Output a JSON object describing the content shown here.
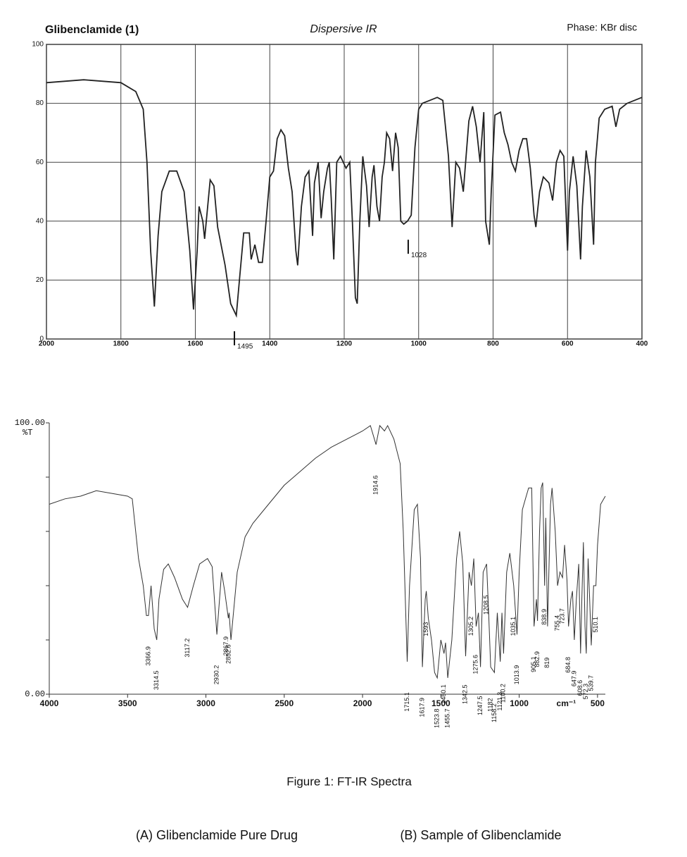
{
  "chart_data": [
    {
      "type": "line",
      "title": "Glibenclamide (1)",
      "subtitle": "Dispersive IR",
      "note": "Phase: KBr disc",
      "grid": true,
      "color": "#222222",
      "xlim": [
        2000,
        400
      ],
      "xticks": [
        2000,
        1800,
        1600,
        1400,
        1200,
        1000,
        800,
        600,
        400
      ],
      "ylim": [
        0,
        100
      ],
      "yticks": [
        0,
        20,
        40,
        60,
        80,
        100
      ],
      "annotations": [
        1495,
        1028
      ],
      "x": [
        2000,
        1900,
        1800,
        1760,
        1740,
        1730,
        1720,
        1710,
        1700,
        1690,
        1670,
        1650,
        1630,
        1615,
        1605,
        1595,
        1590,
        1580,
        1575,
        1560,
        1550,
        1540,
        1520,
        1505,
        1490,
        1480,
        1470,
        1455,
        1450,
        1440,
        1430,
        1420,
        1410,
        1400,
        1390,
        1380,
        1370,
        1360,
        1350,
        1340,
        1330,
        1325,
        1315,
        1305,
        1295,
        1285,
        1280,
        1270,
        1262,
        1255,
        1245,
        1240,
        1235,
        1228,
        1220,
        1210,
        1195,
        1185,
        1178,
        1170,
        1165,
        1158,
        1150,
        1140,
        1133,
        1125,
        1120,
        1112,
        1105,
        1098,
        1092,
        1086,
        1078,
        1070,
        1062,
        1055,
        1048,
        1040,
        1030,
        1020,
        1010,
        1000,
        990,
        970,
        950,
        935,
        920,
        910,
        900,
        890,
        880,
        865,
        855,
        845,
        835,
        825,
        820,
        810,
        805,
        795,
        780,
        770,
        760,
        750,
        740,
        730,
        720,
        710,
        700,
        690,
        685,
        675,
        665,
        650,
        640,
        630,
        620,
        610,
        600,
        595,
        585,
        575,
        565,
        560,
        550,
        540,
        530,
        525,
        515,
        500,
        480,
        470,
        460,
        440,
        420,
        400
      ],
      "values": [
        87,
        88,
        87,
        84,
        78,
        60,
        30,
        11,
        35,
        50,
        57,
        57,
        50,
        30,
        10,
        30,
        45,
        40,
        34,
        54,
        52,
        38,
        25,
        12,
        8,
        22,
        36,
        36,
        27,
        32,
        26,
        26,
        40,
        55,
        57,
        68,
        71,
        69,
        58,
        50,
        30,
        25,
        45,
        55,
        57,
        35,
        53,
        60,
        41,
        50,
        58,
        60,
        48,
        27,
        60,
        62,
        58,
        60,
        40,
        14,
        12,
        40,
        62,
        52,
        38,
        55,
        59,
        45,
        40,
        55,
        60,
        70,
        68,
        57,
        70,
        65,
        40,
        39,
        40,
        42,
        65,
        78,
        80,
        81,
        82,
        81,
        62,
        38,
        60,
        58,
        50,
        74,
        79,
        72,
        60,
        77,
        40,
        32,
        50,
        76,
        77,
        70,
        66,
        60,
        57,
        64,
        68,
        68,
        58,
        42,
        38,
        50,
        55,
        53,
        47,
        60,
        64,
        62,
        30,
        50,
        62,
        52,
        27,
        45,
        64,
        55,
        32,
        60,
        75,
        78,
        79,
        72,
        78,
        80,
        81,
        82
      ]
    },
    {
      "type": "line",
      "y_label": "%T",
      "x_label": "cm⁻¹",
      "color": "#333333",
      "xlim": [
        4000,
        450
      ],
      "xticks": [
        4000,
        3500,
        3000,
        2500,
        2000,
        1500,
        1000,
        500
      ],
      "ylim": [
        0,
        100
      ],
      "yticks": [
        {
          "value": 0,
          "label": "0.00"
        },
        {
          "value": 100,
          "label": "100.00"
        }
      ],
      "minor_yticks": [
        20,
        40,
        60,
        80
      ],
      "peak_labels": [
        3366.9,
        3314.5,
        3117.2,
        2930.2,
        2867.9,
        2852.6,
        1914.6,
        1715.1,
        1617.9,
        1593.0,
        1523.8,
        1480.1,
        1455.7,
        1342.5,
        1305.2,
        1275.6,
        1247.5,
        1208.5,
        1182.0,
        1158.2,
        1121.3,
        1100.2,
        1035.1,
        1013.9,
        905.1,
        882.9,
        838.9,
        819.0,
        755.4,
        723.7,
        684.8,
        647.9,
        608.6,
        572.3,
        539.7,
        510.1
      ],
      "x": [
        4000,
        3900,
        3800,
        3700,
        3600,
        3500,
        3470,
        3430,
        3400,
        3380,
        3367,
        3350,
        3330,
        3314,
        3300,
        3270,
        3240,
        3200,
        3150,
        3117,
        3080,
        3040,
        2990,
        2960,
        2930,
        2900,
        2880,
        2857,
        2852,
        2840,
        2800,
        2750,
        2700,
        2600,
        2500,
        2400,
        2300,
        2200,
        2100,
        2000,
        1950,
        1914,
        1890,
        1860,
        1840,
        1800,
        1760,
        1740,
        1715,
        1700,
        1670,
        1650,
        1630,
        1618,
        1600,
        1593,
        1580,
        1560,
        1540,
        1523,
        1500,
        1480,
        1470,
        1456,
        1430,
        1400,
        1380,
        1360,
        1342,
        1320,
        1305,
        1290,
        1275,
        1260,
        1247,
        1230,
        1208,
        1195,
        1182,
        1158,
        1140,
        1121,
        1110,
        1100,
        1080,
        1060,
        1035,
        1014,
        1000,
        980,
        960,
        940,
        920,
        905,
        890,
        883,
        870,
        860,
        850,
        838,
        830,
        819,
        800,
        790,
        770,
        755,
        740,
        723,
        710,
        695,
        685,
        670,
        660,
        648,
        635,
        620,
        608,
        600,
        590,
        580,
        572,
        560,
        550,
        540,
        525,
        510,
        500,
        480,
        460,
        450
      ],
      "values": [
        70,
        72,
        73,
        75,
        74,
        73,
        72,
        50,
        40,
        29,
        29,
        40,
        24,
        20,
        35,
        46,
        48,
        43,
        35,
        32,
        40,
        48,
        50,
        47,
        22,
        45,
        38,
        28,
        30,
        20,
        45,
        58,
        63,
        70,
        77,
        82,
        87,
        91,
        94,
        97,
        99,
        92,
        99,
        97,
        99,
        94,
        85,
        60,
        12,
        40,
        68,
        70,
        50,
        10,
        35,
        38,
        28,
        20,
        8,
        6,
        20,
        15,
        19,
        6,
        20,
        50,
        60,
        48,
        14,
        45,
        40,
        50,
        25,
        30,
        10,
        45,
        48,
        30,
        10,
        8,
        30,
        12,
        30,
        15,
        45,
        52,
        40,
        22,
        45,
        68,
        72,
        76,
        76,
        25,
        35,
        27,
        60,
        76,
        78,
        40,
        65,
        25,
        70,
        76,
        60,
        40,
        45,
        43,
        55,
        42,
        25,
        35,
        38,
        20,
        35,
        48,
        15,
        35,
        56,
        25,
        15,
        50,
        35,
        18,
        40,
        40,
        55,
        70,
        72,
        73
      ]
    }
  ],
  "caption": "Figure 1: FT-IR Spectra",
  "panel_labels": [
    "(A) Glibenclamide Pure Drug",
    "(B) Sample of Glibenclamide"
  ]
}
